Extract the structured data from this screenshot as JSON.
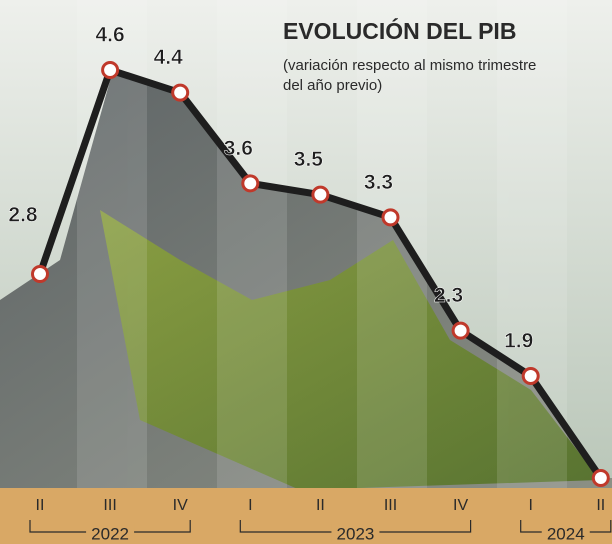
{
  "chart_data": {
    "type": "line",
    "title": "EVOLUCIÓN DEL PIB",
    "subtitle": [
      "(variación respecto al mismo trimestre",
      "del año previo)"
    ],
    "categories": [
      "II",
      "III",
      "IV",
      "I",
      "II",
      "III",
      "IV",
      "I",
      "II"
    ],
    "category_groups": [
      {
        "label": "2022",
        "span": 3
      },
      {
        "label": "2023",
        "span": 4
      },
      {
        "label": "2024",
        "span": 2
      }
    ],
    "values": [
      2.8,
      4.6,
      4.4,
      3.6,
      3.5,
      3.3,
      2.3,
      1.9,
      1.0
    ],
    "color": "#1e1e1e",
    "marker_color": "#c0392b"
  }
}
